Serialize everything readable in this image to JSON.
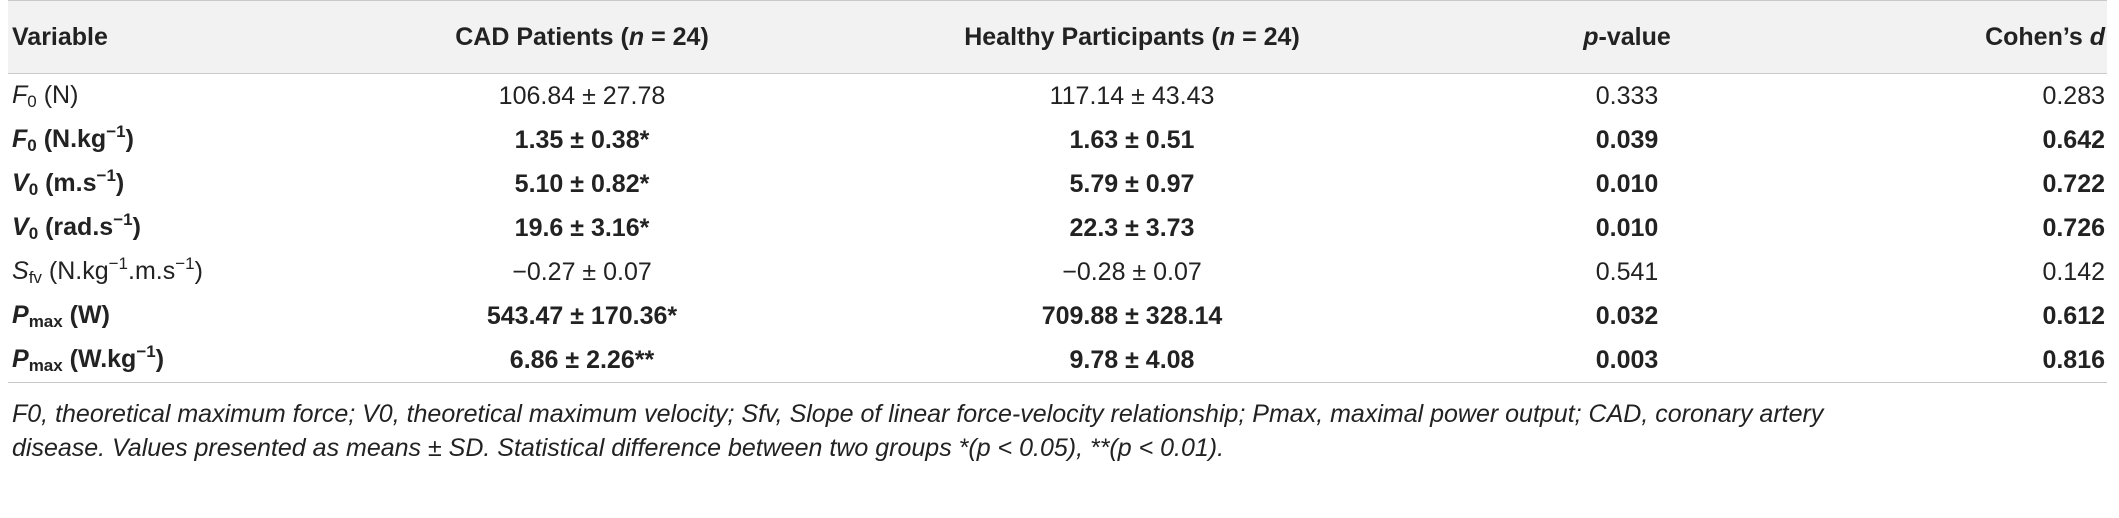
{
  "table": {
    "headers": {
      "variable": "Variable",
      "cad": "CAD Patients (n = 24)",
      "healthy": "Healthy Participants (n = 24)",
      "pvalue": "p-value",
      "cohen": "Cohen’s d"
    },
    "rows": [
      {
        "var_sym": "F",
        "var_sub": "0",
        "var_unit": " (N)",
        "cad": "106.84 ± 27.78",
        "healthy": "117.14 ± 43.43",
        "p": "0.333",
        "d": "0.283",
        "bold": false
      },
      {
        "var_sym": "F",
        "var_sub": "0",
        "var_unit": " (N.kg−1)",
        "cad": "1.35 ± 0.38*",
        "healthy": "1.63 ± 0.51",
        "p": "0.039",
        "d": "0.642",
        "bold": true
      },
      {
        "var_sym": "V",
        "var_sub": "0",
        "var_unit": " (m.s−1)",
        "cad": "5.10 ± 0.82*",
        "healthy": "5.79 ± 0.97",
        "p": "0.010",
        "d": "0.722",
        "bold": true
      },
      {
        "var_sym": "V",
        "var_sub": "0",
        "var_unit": " (rad.s−1)",
        "cad": "19.6 ± 3.16*",
        "healthy": "22.3 ± 3.73",
        "p": "0.010",
        "d": "0.726",
        "bold": true
      },
      {
        "var_sym": "S",
        "var_sub": "fv",
        "var_unit": " (N.kg−1.m.s−1)",
        "cad": "−0.27 ± 0.07",
        "healthy": "−0.28 ± 0.07",
        "p": "0.541",
        "d": "0.142",
        "bold": false
      },
      {
        "var_sym": "P",
        "var_sub": "max",
        "var_unit": " (W)",
        "cad": "543.47 ± 170.36*",
        "healthy": "709.88 ± 328.14",
        "p": "0.032",
        "d": "0.612",
        "bold": true
      },
      {
        "var_sym": "P",
        "var_sub": "max",
        "var_unit": " (W.kg−1)",
        "cad": "6.86 ± 2.26**",
        "healthy": "9.78 ± 4.08",
        "p": "0.003",
        "d": "0.816",
        "bold": true
      }
    ]
  },
  "caption": {
    "line1": "F0, theoretical maximum force; V0, theoretical maximum velocity; Sfv, Slope of linear force-velocity relationship; Pmax, maximal power output; CAD, coronary artery",
    "line2": "disease. Values presented as means ± SD. Statistical difference between two groups *(p < 0.05), **(p < 0.01)."
  }
}
